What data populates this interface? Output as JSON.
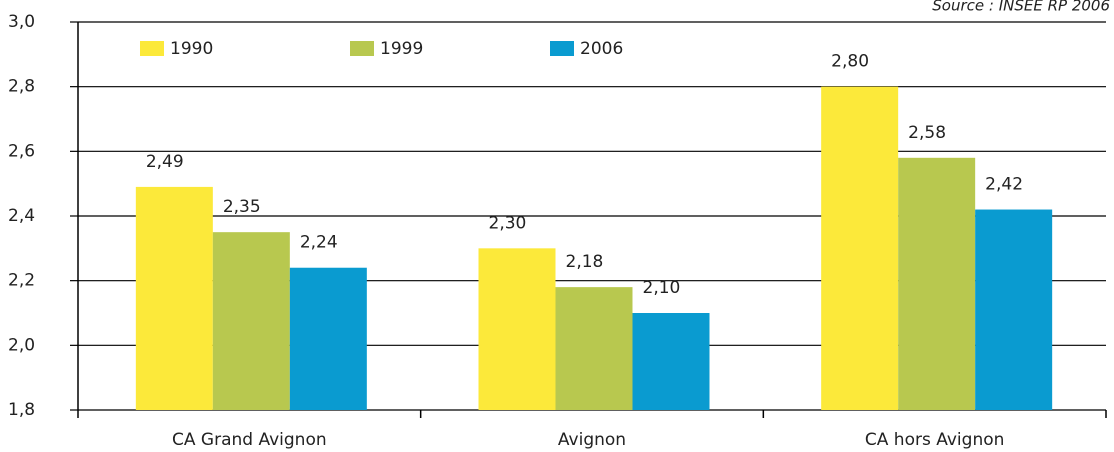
{
  "chart_data": {
    "type": "bar",
    "annotation": "Source : INSEE RP 2006",
    "categories": [
      "CA Grand Avignon",
      "Avignon",
      "CA hors Avignon"
    ],
    "series": [
      {
        "name": "1990",
        "color": "#fce93a",
        "values": [
          2.49,
          2.3,
          2.8
        ],
        "value_labels": [
          "2,49",
          "2,30",
          "2,80"
        ]
      },
      {
        "name": "1999",
        "color": "#b8c84f",
        "values": [
          2.35,
          2.18,
          2.58
        ],
        "value_labels": [
          "2,35",
          "2,18",
          "2,58"
        ]
      },
      {
        "name": "2006",
        "color": "#0a9bd0",
        "values": [
          2.24,
          2.1,
          2.42
        ],
        "value_labels": [
          "2,24",
          "2,10",
          "2,42"
        ]
      }
    ],
    "ylim": [
      1.8,
      3.0
    ],
    "yticks": [
      {
        "value": 1.8,
        "label": "1,8"
      },
      {
        "value": 2.0,
        "label": "2,0"
      },
      {
        "value": 2.2,
        "label": "2,2"
      },
      {
        "value": 2.4,
        "label": "2,4"
      },
      {
        "value": 2.6,
        "label": "2,6"
      },
      {
        "value": 2.8,
        "label": "2,8"
      },
      {
        "value": 3.0,
        "label": "3,0"
      }
    ],
    "grid": true,
    "legend": "top"
  }
}
